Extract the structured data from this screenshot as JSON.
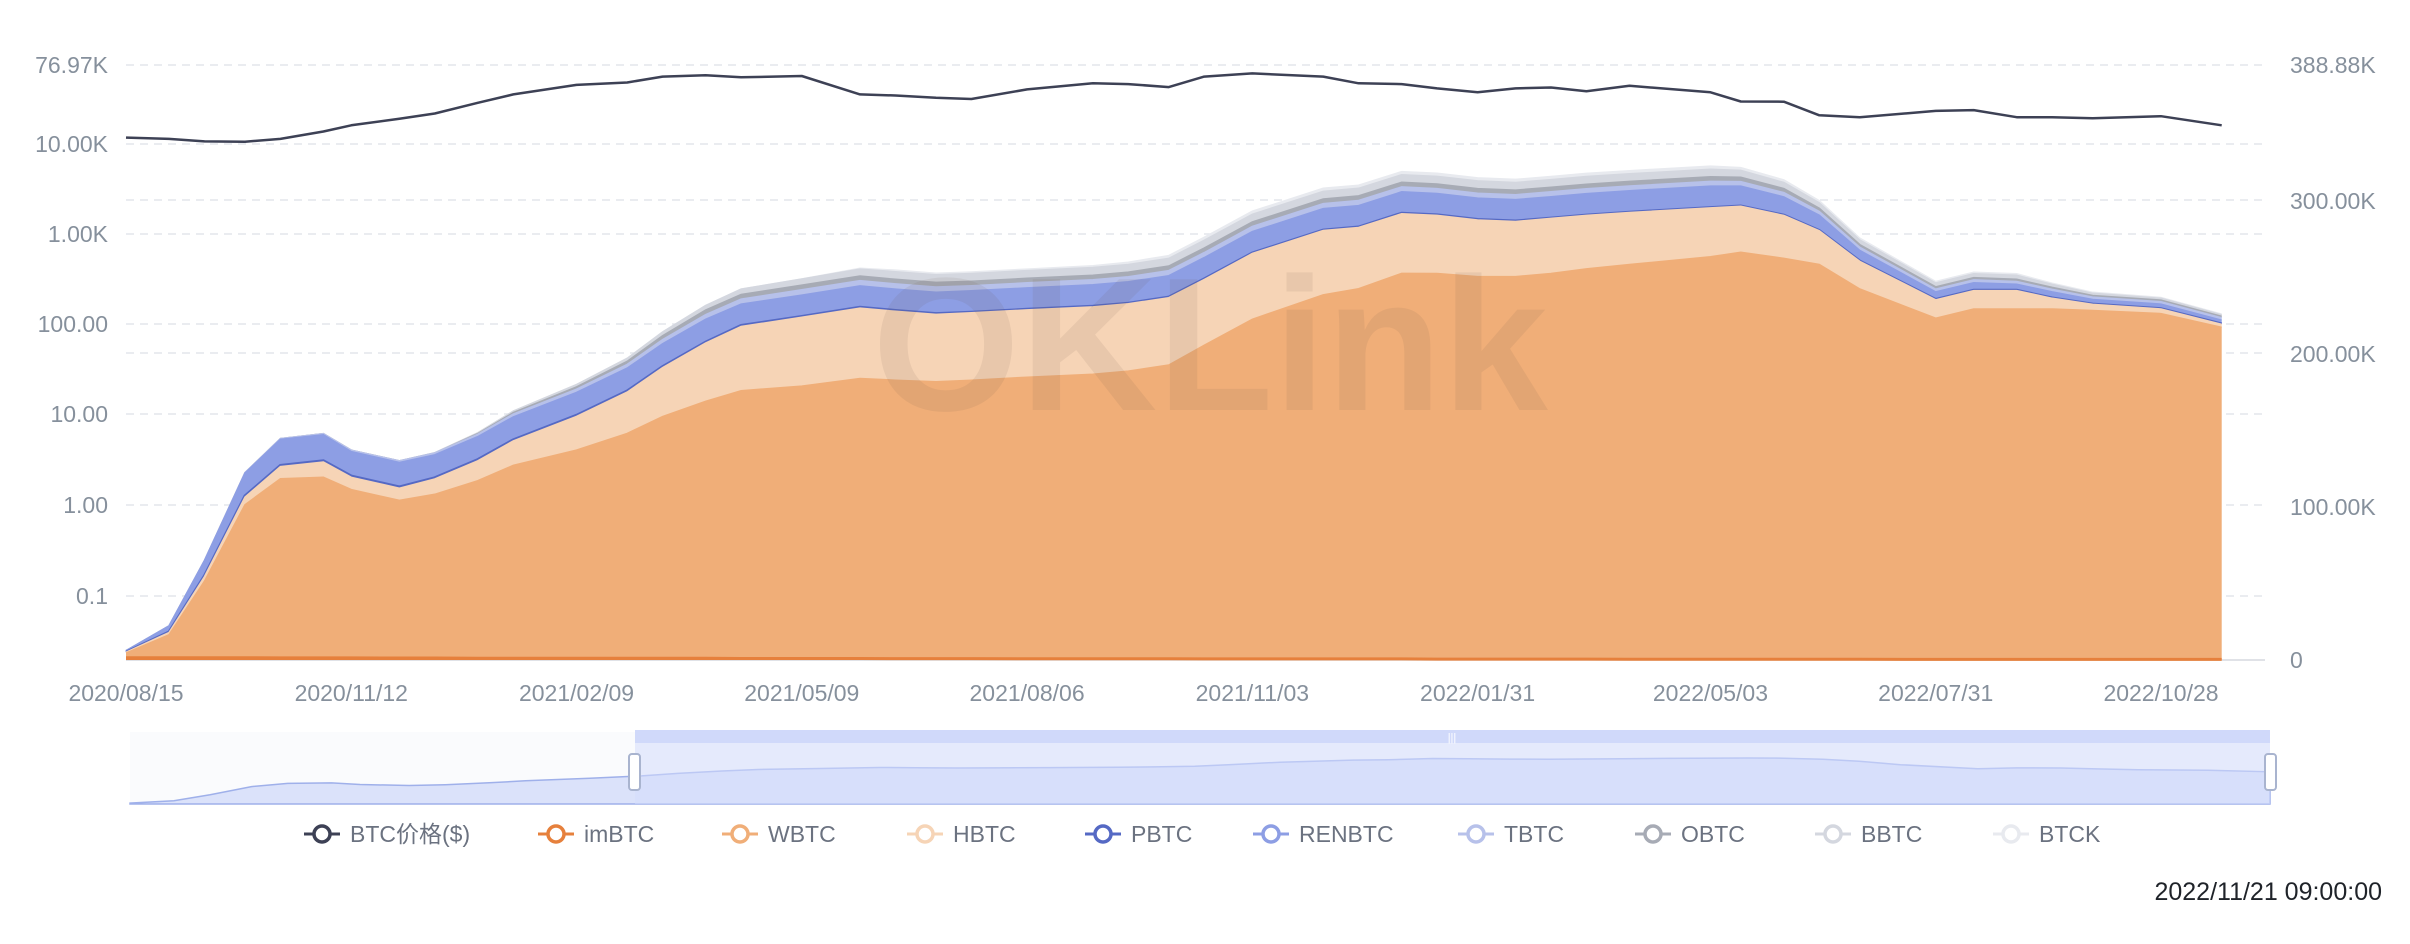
{
  "chart_data": {
    "type": "area",
    "x_ticks": [
      "2020/08/15",
      "2020/11/12",
      "2021/02/09",
      "2021/05/09",
      "2021/08/06",
      "2021/11/03",
      "2022/01/31",
      "2022/05/03",
      "2022/07/31",
      "2022/10/28"
    ],
    "left_axis": {
      "scale": "log",
      "ticks": [
        "76.97K",
        "10.00K",
        "1.00K",
        "100.00",
        "10.00",
        "1.00",
        "0.1"
      ]
    },
    "right_axis": {
      "ticks": [
        "388.88K",
        "300.00K",
        "200.00K",
        "100.00K",
        "0"
      ],
      "ylim": [
        0,
        388880
      ]
    },
    "grid": true,
    "legend_position": "bottom",
    "watermark": "OKLink",
    "timestamp": "2022/11/21 09:00:00",
    "x_dates": [
      "2020/08/15",
      "2020/09/01",
      "2020/09/15",
      "2020/10/01",
      "2020/10/15",
      "2020/11/01",
      "2020/11/12",
      "2020/12/01",
      "2020/12/15",
      "2021/01/01",
      "2021/01/15",
      "2021/02/09",
      "2021/03/01",
      "2021/03/15",
      "2021/04/01",
      "2021/04/15",
      "2021/05/09",
      "2021/06/01",
      "2021/06/15",
      "2021/07/01",
      "2021/07/15",
      "2021/08/06",
      "2021/09/01",
      "2021/09/15",
      "2021/10/01",
      "2021/10/15",
      "2021/11/03",
      "2021/12/01",
      "2021/12/15",
      "2022/01/01",
      "2022/01/15",
      "2022/01/31",
      "2022/02/15",
      "2022/03/01",
      "2022/03/15",
      "2022/04/01",
      "2022/05/03",
      "2022/05/15",
      "2022/06/01",
      "2022/06/15",
      "2022/07/01",
      "2022/07/31",
      "2022/08/15",
      "2022/09/01",
      "2022/09/15",
      "2022/10/01",
      "2022/10/28",
      "2022/11/21"
    ],
    "btc_price": [
      11800,
      11400,
      10700,
      10600,
      11400,
      13800,
      16200,
      19200,
      22000,
      29000,
      36000,
      46000,
      49000,
      57000,
      59000,
      56000,
      58000,
      36000,
      35000,
      33000,
      32000,
      41000,
      48000,
      47000,
      43500,
      57000,
      62000,
      57000,
      48000,
      47000,
      42000,
      38000,
      42000,
      43000,
      39000,
      45000,
      38000,
      30000,
      29800,
      21000,
      20000,
      23500,
      24000,
      20000,
      20000,
      19400,
      20500,
      16200
    ],
    "series": [
      {
        "name": "BTC价格($)",
        "color": "#3d4155"
      },
      {
        "name": "imBTC",
        "color": "#e6803c",
        "values": [
          1500,
          1500,
          1500,
          1500,
          1400,
          1400,
          1400,
          1300,
          1300,
          1200,
          1200,
          1200,
          1100,
          1100,
          1100,
          1000,
          1000,
          1000,
          900,
          900,
          900,
          800,
          800,
          800,
          800,
          700,
          700,
          700,
          700,
          700,
          600,
          600,
          600,
          600,
          600,
          500,
          500,
          500,
          500,
          500,
          500,
          400,
          400,
          400,
          400,
          400,
          400,
          400
        ]
      },
      {
        "name": "WBTC",
        "color": "#f0ae78",
        "values": [
          3000,
          15000,
          50000,
          100000,
          117000,
          118000,
          110000,
          103000,
          107000,
          116000,
          126000,
          136000,
          147000,
          158000,
          168000,
          175000,
          178000,
          183000,
          182000,
          181000,
          182000,
          184000,
          186000,
          188000,
          192000,
          205000,
          222000,
          238000,
          242000,
          252000,
          252000,
          250000,
          250000,
          252000,
          255000,
          258000,
          263000,
          266000,
          262000,
          258000,
          242000,
          223000,
          229000,
          229000,
          229000,
          228000,
          226000,
          217000
        ]
      },
      {
        "name": "HBTC",
        "color": "#f6d4b6",
        "values": [
          500,
          1500,
          3000,
          5000,
          8000,
          10000,
          8000,
          8000,
          10000,
          13000,
          16000,
          22000,
          27000,
          32000,
          38000,
          42000,
          45000,
          46000,
          45000,
          44000,
          44000,
          44000,
          44000,
          44000,
          44000,
          43000,
          43000,
          42000,
          40000,
          39000,
          38000,
          37000,
          36000,
          36000,
          35000,
          34000,
          32000,
          30000,
          28000,
          22000,
          18000,
          12000,
          12000,
          12000,
          7000,
          4000,
          3000,
          2000
        ]
      },
      {
        "name": "PBTC",
        "color": "#5569c4",
        "values": [
          100,
          300,
          500,
          700,
          800,
          800,
          800,
          800,
          800,
          800,
          700,
          700,
          700,
          600,
          600,
          600,
          500,
          500,
          500,
          500,
          400,
          400,
          400,
          400,
          400,
          300,
          300,
          300,
          300,
          300,
          300,
          300,
          300,
          200,
          200,
          200,
          200,
          200,
          200,
          200,
          200,
          200,
          200,
          200,
          200,
          200,
          200,
          200
        ]
      },
      {
        "name": "RENBTC",
        "color": "#8d9ee4",
        "values": [
          1000,
          4000,
          10000,
          15000,
          17000,
          17000,
          16000,
          16000,
          15000,
          15000,
          15000,
          15000,
          15000,
          15000,
          15000,
          14000,
          14000,
          14000,
          14000,
          14000,
          14000,
          14000,
          14000,
          14000,
          14000,
          14000,
          14000,
          14000,
          14000,
          14000,
          14000,
          14000,
          14000,
          14000,
          14000,
          14000,
          14000,
          13000,
          12000,
          10000,
          7000,
          5000,
          5000,
          4000,
          4000,
          3000,
          3000,
          2500
        ]
      },
      {
        "name": "TBTC",
        "color": "#b7c1ea",
        "values": [
          0,
          0,
          0,
          200,
          500,
          700,
          900,
          1000,
          1200,
          1500,
          1800,
          2100,
          2400,
          2700,
          3000,
          3300,
          3500,
          3500,
          3400,
          3400,
          3300,
          3300,
          3300,
          3300,
          3300,
          3300,
          3300,
          3300,
          3300,
          3200,
          3200,
          3200,
          3200,
          3200,
          3200,
          3100,
          3100,
          3000,
          2800,
          2400,
          2000,
          1800,
          1800,
          1800,
          1700,
          1600,
          1600,
          1500
        ]
      },
      {
        "name": "OBTC",
        "color": "#a7abb5",
        "values": [
          0,
          0,
          0,
          0,
          0,
          0,
          0,
          0,
          0,
          500,
          1000,
          1500,
          2000,
          2500,
          3000,
          3000,
          3000,
          3000,
          3000,
          3000,
          3000,
          3000,
          3000,
          3000,
          3000,
          3000,
          3000,
          3000,
          3000,
          3000,
          3000,
          3000,
          3000,
          3000,
          3000,
          3000,
          3000,
          2800,
          2600,
          2200,
          1800,
          1500,
          1500,
          1500,
          1200,
          1000,
          1000,
          1000
        ]
      },
      {
        "name": "BBTC",
        "color": "#d4d7df",
        "values": [
          0,
          0,
          0,
          0,
          0,
          0,
          0,
          0,
          200,
          500,
          1000,
          1500,
          2000,
          2500,
          3000,
          3500,
          4000,
          4500,
          5000,
          5000,
          5000,
          5000,
          5000,
          5000,
          5000,
          5000,
          5000,
          5000,
          5000,
          5000,
          5000,
          5000,
          5000,
          5000,
          5000,
          5000,
          5000,
          4500,
          4000,
          3500,
          3000,
          2500,
          2500,
          2500,
          2000,
          1500,
          1200,
          1000
        ]
      },
      {
        "name": "BTCK",
        "color": "#e8eaef",
        "values": [
          0,
          0,
          0,
          0,
          0,
          0,
          0,
          0,
          0,
          0,
          0,
          0,
          0,
          0,
          0,
          0,
          0,
          500,
          1000,
          1000,
          1000,
          1000,
          1200,
          1500,
          1800,
          2000,
          2000,
          2000,
          2000,
          2000,
          2000,
          2000,
          2000,
          2000,
          2000,
          2000,
          2000,
          1800,
          1600,
          1400,
          1200,
          1000,
          1000,
          1000,
          800,
          600,
          500,
          500
        ]
      }
    ]
  }
}
